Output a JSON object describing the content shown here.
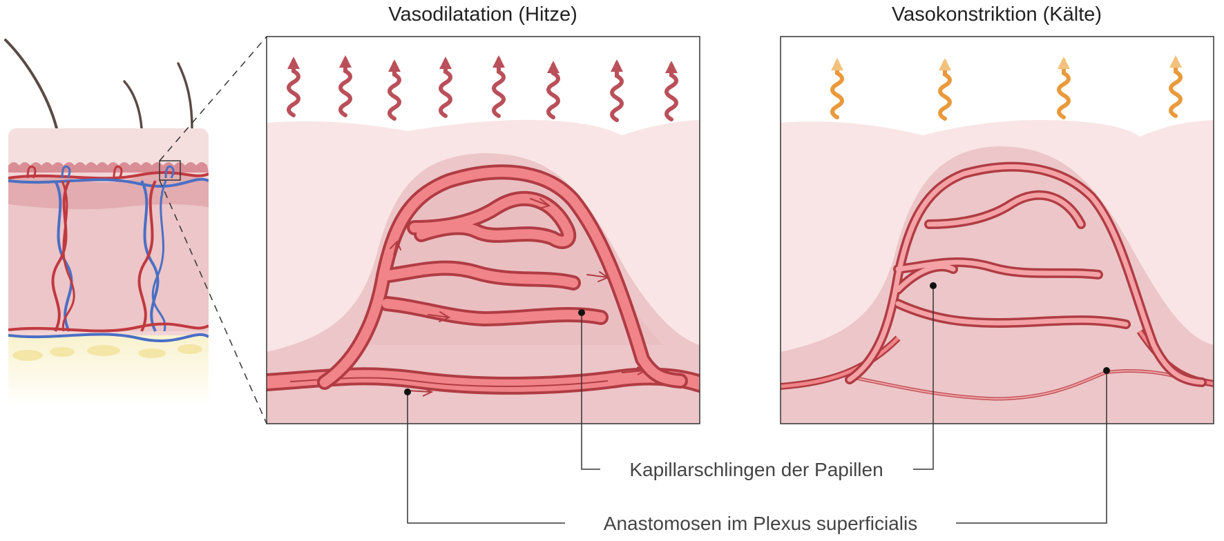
{
  "diagram": {
    "panel_left": {
      "title": "Vasodilatation (Hitze)"
    },
    "panel_right": {
      "title": "Vasokonstriktion (Kälte)"
    },
    "labels": {
      "capillary_loops": "Kapillarschlingen der Papillen",
      "anastomoses": "Anastomosen im Plexus superficialis"
    }
  }
}
